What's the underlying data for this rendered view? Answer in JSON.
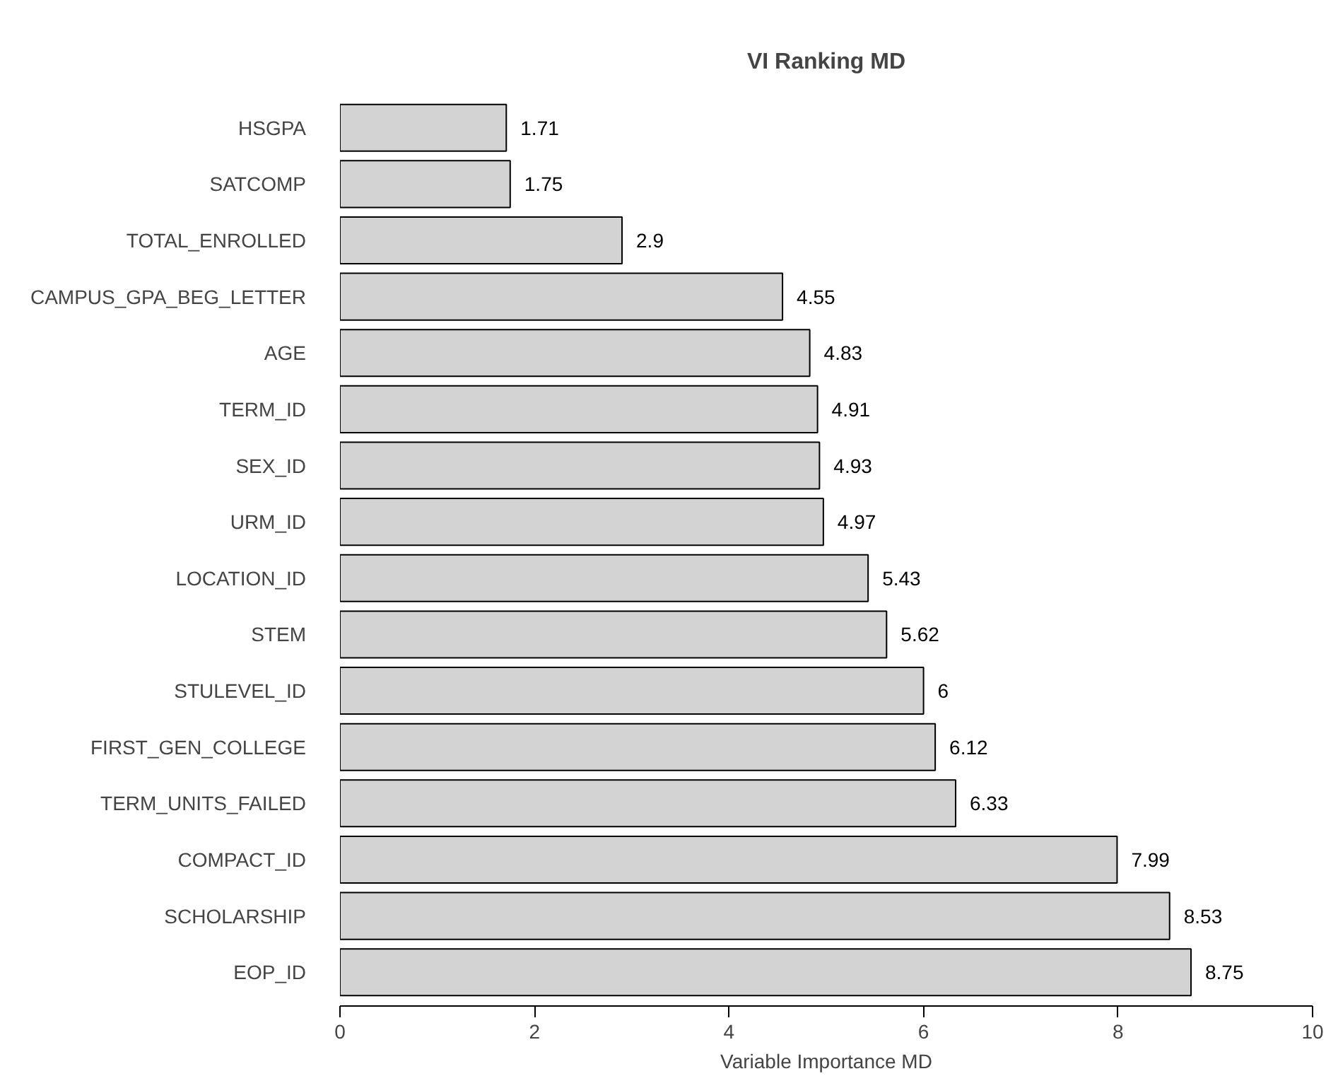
{
  "chart_data": {
    "type": "bar",
    "orientation": "horizontal",
    "title": "VI Ranking MD",
    "xlabel": "Variable Importance MD",
    "categories": [
      "HSGPA",
      "SATCOMP",
      "TOTAL_ENROLLED",
      "CAMPUS_GPA_BEG_LETTER",
      "AGE",
      "TERM_ID",
      "SEX_ID",
      "URM_ID",
      "LOCATION_ID",
      "STEM",
      "STULEVEL_ID",
      "FIRST_GEN_COLLEGE",
      "TERM_UNITS_FAILED",
      "COMPACT_ID",
      "SCHOLARSHIP",
      "EOP_ID"
    ],
    "values": [
      1.71,
      1.75,
      2.9,
      4.55,
      4.83,
      4.91,
      4.93,
      4.97,
      5.43,
      5.62,
      6,
      6.12,
      6.33,
      7.99,
      8.53,
      8.75
    ],
    "color": "#d3d3d3",
    "xlim": [
      0,
      10
    ],
    "xticks": [
      0,
      2,
      4,
      6,
      8,
      10
    ],
    "data_labels": true
  }
}
